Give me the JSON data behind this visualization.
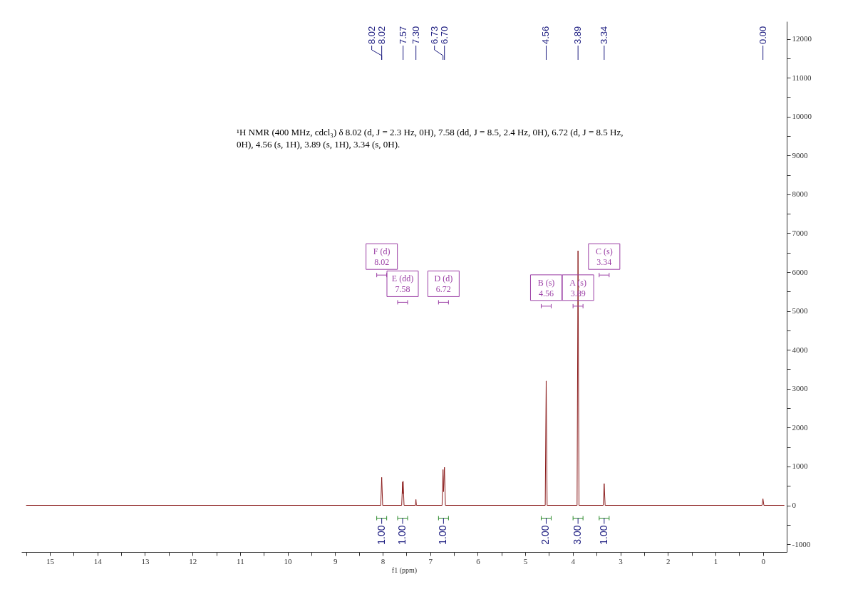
{
  "chart_data": {
    "type": "line",
    "xlabel": "f1 (ppm)",
    "series": [
      {
        "color": "#8b1c1c",
        "x": [
          15.5,
          8.04,
          8.02,
          8.0,
          7.6,
          7.58,
          7.575,
          7.57,
          7.55,
          7.31,
          7.3,
          7.29,
          6.75,
          6.73,
          6.72,
          6.7,
          6.68,
          4.58,
          4.56,
          4.54,
          3.91,
          3.89,
          3.87,
          3.36,
          3.34,
          3.32,
          0.02,
          0.0,
          -0.02,
          -0.45
        ],
        "values": [
          0,
          0,
          720,
          0,
          0,
          600,
          300,
          620,
          0,
          0,
          150,
          0,
          0,
          920,
          350,
          980,
          0,
          0,
          3200,
          0,
          0,
          6550,
          0,
          0,
          560,
          0,
          0,
          170,
          0,
          0
        ]
      }
    ],
    "xlim": [
      15.6,
      -0.5
    ],
    "xticks": [
      {
        "value": 15.5,
        "label": null
      },
      15,
      {
        "value": 14.5,
        "label": null
      },
      14,
      {
        "value": 13.5,
        "label": null
      },
      13,
      {
        "value": 12.5,
        "label": null
      },
      12,
      {
        "value": 11.5,
        "label": null
      },
      11,
      {
        "value": 10.5,
        "label": null
      },
      10,
      {
        "value": 9.5,
        "label": null
      },
      9,
      {
        "value": 8.5,
        "label": null
      },
      8,
      {
        "value": 7.5,
        "label": null
      },
      7,
      {
        "value": 6.5,
        "label": null
      },
      6,
      {
        "value": 5.5,
        "label": null
      },
      5,
      {
        "value": 4.5,
        "label": null
      },
      4,
      {
        "value": 3.5,
        "label": null
      },
      3,
      {
        "value": 2.5,
        "label": null
      },
      2,
      {
        "value": 1.5,
        "label": null
      },
      1,
      {
        "value": 0.5,
        "label": null
      },
      0
    ],
    "ylim": [
      -1200,
      12450
    ],
    "yticks": [
      -1000,
      {
        "value": -500,
        "label": null
      },
      0,
      {
        "value": 500,
        "label": null
      },
      1000,
      {
        "value": 1500,
        "label": null
      },
      2000,
      {
        "value": 2500,
        "label": null
      },
      3000,
      {
        "value": 3500,
        "label": null
      },
      4000,
      {
        "value": 4500,
        "label": null
      },
      5000,
      {
        "value": 5500,
        "label": null
      },
      6000,
      {
        "value": 6500,
        "label": null
      },
      7000,
      {
        "value": 7500,
        "label": null
      },
      8000,
      {
        "value": 8500,
        "label": null
      },
      9000,
      {
        "value": 9500,
        "label": null
      },
      10000,
      {
        "value": 10500,
        "label": null
      },
      11000,
      {
        "value": 11500,
        "label": null
      },
      12000
    ],
    "grid": false,
    "line_style": "solid",
    "annotations": [
      {
        "text": "F (d)\n8.02",
        "x": 8.02,
        "y": 6400
      },
      {
        "text": "E (dd)\n7.58",
        "x": 7.58,
        "y": 5700
      },
      {
        "text": "D (d)\n6.72",
        "x": 6.72,
        "y": 5700
      },
      {
        "text": "B (s)\n4.56",
        "x": 4.56,
        "y": 5600
      },
      {
        "text": "A (s)\n3.89",
        "x": 3.89,
        "y": 5600
      },
      {
        "text": "C (s)\n3.34",
        "x": 3.34,
        "y": 6400
      },
      {
        "text": "8.02",
        "x": 8.02
      },
      {
        "text": "8.02",
        "x": 8.02
      },
      {
        "text": "7.57",
        "x": 7.57
      },
      {
        "text": "7.30",
        "x": 7.3
      },
      {
        "text": "6.73",
        "x": 6.73
      },
      {
        "text": "6.70",
        "x": 6.7
      },
      {
        "text": "4.56",
        "x": 4.56
      },
      {
        "text": "3.89",
        "x": 3.89
      },
      {
        "text": "3.34",
        "x": 3.34
      },
      {
        "text": "0.00",
        "x": 0.0
      },
      "¹H NMR (400 MHz, cdcl₃) δ 8.02 (d, J = 2.3 Hz, 0H), 7.58 (dd, J = 8.5, 2.4 Hz, 0H), 6.72 (d, J = 8.5 Hz, 0H), 4.56 (s, 1H), 3.89 (s, 1H), 3.34 (s, 0H).",
      {
        "text": "1.00",
        "x": 8.02,
        "y": 0
      },
      {
        "text": "1.00",
        "x": 7.58,
        "y": 0
      },
      {
        "text": "1.00",
        "x": 6.72,
        "y": 0
      },
      {
        "text": "2.00",
        "x": 4.56,
        "y": 0
      },
      {
        "text": "3.00",
        "x": 3.89,
        "y": 0
      },
      {
        "text": "1.00",
        "x": 3.34,
        "y": 0
      }
    ]
  }
}
